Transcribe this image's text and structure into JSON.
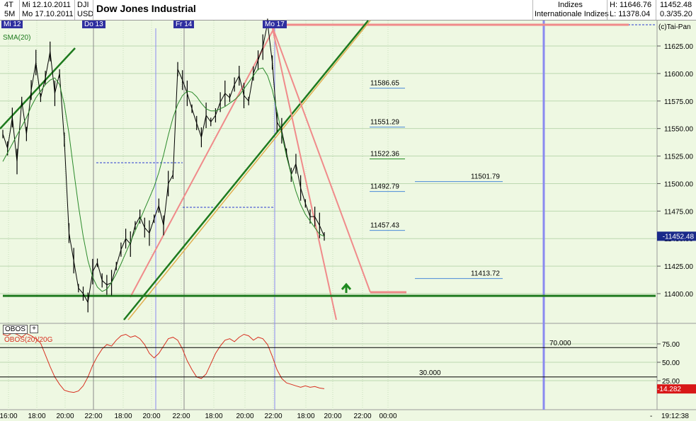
{
  "header": {
    "timeframe_top": "4T",
    "timeframe_bottom": "5M",
    "date_from": "Mi 12.10.2011",
    "date_to": "Mo 17.10.2011",
    "symbol": "DJI",
    "currency": "USD",
    "title": "Dow Jones Industrial",
    "group1": "Indizes",
    "group2": "Internationale Indizes",
    "high_label": "H: 11646.76",
    "low_label": "L: 11378.04",
    "last_price": "11452.48",
    "change": "0.3/35.20"
  },
  "chart_data": [
    {
      "type": "line",
      "title": "Dow Jones Industrial",
      "legend": [
        "SMA(20)"
      ],
      "copyright": "(c)Tai-Pan",
      "ylim": [
        11380,
        11650
      ],
      "y_ticks": [
        "11625.00",
        "11600.00",
        "11575.00",
        "11550.00",
        "11525.00",
        "11500.00",
        "11475.00",
        "11450.00",
        "11425.00",
        "11400.00"
      ],
      "current_price_label": "11452.48",
      "day_markers": [
        "Mi 12",
        "Do 13",
        "Fr 14",
        "Mo 17"
      ],
      "levels": [
        {
          "label": "11586.65",
          "value": 11586.65
        },
        {
          "label": "11551.29",
          "value": 11551.29
        },
        {
          "label": "11522.36",
          "value": 11522.36
        },
        {
          "label": "11492.79",
          "value": 11492.79
        },
        {
          "label": "11457.43",
          "value": 11457.43
        },
        {
          "label": "11501.79",
          "value": 11501.79
        },
        {
          "label": "11413.72",
          "value": 11413.72
        }
      ],
      "support_line": 11398,
      "price_series": [
        {
          "name": "price",
          "values": [
            11545,
            11532,
            11560,
            11520,
            11575,
            11545,
            11585,
            11610,
            11578,
            11596,
            11620,
            11582,
            11600,
            11540,
            11455,
            11430,
            11405,
            11400,
            11392,
            11420,
            11428,
            11412,
            11408,
            11410,
            11425,
            11440,
            11450,
            11445,
            11462,
            11470,
            11460,
            11455,
            11468,
            11480,
            11462,
            11500,
            11508,
            11604,
            11594,
            11582,
            11568,
            11555,
            11542,
            11562,
            11556,
            11562,
            11574,
            11582,
            11578,
            11590,
            11598,
            11580,
            11575,
            11600,
            11612,
            11624,
            11646,
            11610,
            11556,
            11548,
            11528,
            11508,
            11518,
            11496,
            11482,
            11470,
            11470,
            11462,
            11452
          ]
        }
      ],
      "sma_series": [
        {
          "name": "SMA(20)",
          "values": [
            11520,
            11528,
            11536,
            11544,
            11552,
            11560,
            11570,
            11578,
            11584,
            11590,
            11594,
            11596,
            11590,
            11572,
            11545,
            11512,
            11480,
            11452,
            11430,
            11415,
            11406,
            11402,
            11404,
            11410,
            11418,
            11427,
            11437,
            11447,
            11457,
            11467,
            11477,
            11487,
            11497,
            11510,
            11526,
            11544,
            11560,
            11572,
            11580,
            11584,
            11583,
            11579,
            11573,
            11568,
            11566,
            11566,
            11568,
            11570,
            11573,
            11576,
            11580,
            11586,
            11592,
            11598,
            11604,
            11605,
            11598,
            11585,
            11566,
            11545,
            11525,
            11508,
            11493,
            11481,
            11472,
            11466,
            11460,
            11454,
            11452
          ]
        }
      ]
    },
    {
      "type": "line",
      "title": "OBOS(20)/20G",
      "ylim": [
        0,
        100
      ],
      "y_ticks": [
        "75.00",
        "50.00",
        "25.00"
      ],
      "levels": [
        {
          "label": "70.000",
          "value": 70
        },
        {
          "label": "30.000",
          "value": 30
        }
      ],
      "current_value_label": "14.282",
      "series": [
        {
          "name": "OBOS(20)/20G",
          "values": [
            88,
            86,
            90,
            88,
            84,
            89,
            86,
            82,
            76,
            60,
            44,
            30,
            20,
            12,
            10,
            9,
            11,
            18,
            30,
            46,
            58,
            68,
            74,
            72,
            80,
            86,
            88,
            84,
            86,
            82,
            74,
            62,
            56,
            62,
            72,
            82,
            84,
            80,
            68,
            52,
            40,
            30,
            28,
            34,
            48,
            62,
            72,
            80,
            82,
            78,
            84,
            88,
            86,
            80,
            84,
            82,
            74,
            58,
            40,
            28,
            22,
            20,
            18,
            16,
            18,
            16,
            17,
            15,
            14
          ]
        }
      ]
    }
  ],
  "x_axis": {
    "labels": [
      "16:00",
      "18:00",
      "20:00",
      "22:00",
      "18:00",
      "20:00",
      "22:00",
      "18:00",
      "20:00",
      "22:00",
      "18:00",
      "20:00",
      "22:00",
      "00:00"
    ],
    "clock": "19:12:38",
    "minus_label": "-"
  },
  "colors": {
    "background": "#eef8e2",
    "support": "#1e7a1e",
    "trend": "#1e7a1e",
    "pink": "#f08a8a",
    "blue_marker": "#8a8af0",
    "sma": "#2a8a2a",
    "obos": "#d83020",
    "price_badge": "#1a2a8a"
  },
  "icons": {
    "arrow": "up-arrow-icon",
    "obos_toggle": "plus-icon"
  }
}
